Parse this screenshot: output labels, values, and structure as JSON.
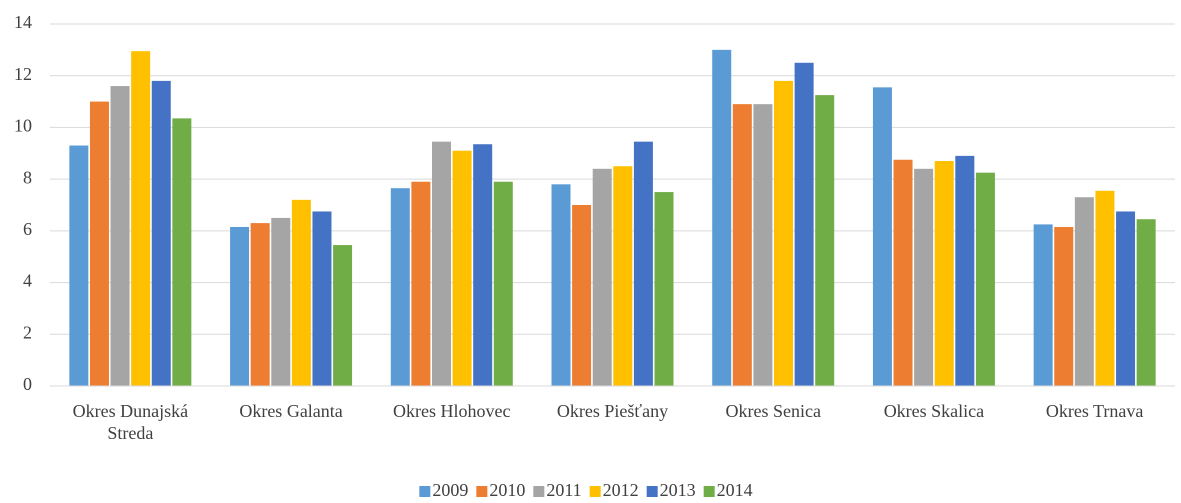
{
  "chart_data": {
    "type": "bar",
    "categories": [
      "Okres Dunajská Streda",
      "Okres Galanta",
      "Okres Hlohovec",
      "Okres Piešťany",
      "Okres Senica",
      "Okres Skalica",
      "Okres Trnava"
    ],
    "series": [
      {
        "name": "2009",
        "color": "#5b9bd5",
        "values": [
          9.3,
          6.15,
          7.65,
          7.8,
          13.0,
          11.55,
          6.25
        ]
      },
      {
        "name": "2010",
        "color": "#ed7d31",
        "values": [
          11.0,
          6.3,
          7.9,
          7.0,
          10.9,
          8.75,
          6.15
        ]
      },
      {
        "name": "2011",
        "color": "#a5a5a5",
        "values": [
          11.6,
          6.5,
          9.45,
          8.4,
          10.9,
          8.4,
          7.3
        ]
      },
      {
        "name": "2012",
        "color": "#ffc000",
        "values": [
          12.95,
          7.2,
          9.1,
          8.5,
          11.8,
          8.7,
          7.55
        ]
      },
      {
        "name": "2013",
        "color": "#4472c4",
        "values": [
          11.8,
          6.75,
          9.35,
          9.45,
          12.5,
          8.9,
          6.75
        ]
      },
      {
        "name": "2014",
        "color": "#70ad47",
        "values": [
          10.35,
          5.45,
          7.9,
          7.5,
          11.25,
          8.25,
          6.45
        ]
      }
    ],
    "ylim": [
      0,
      14
    ],
    "yticks": [
      0,
      2,
      4,
      6,
      8,
      10,
      12,
      14
    ],
    "grid": true,
    "legend": "bottom"
  }
}
